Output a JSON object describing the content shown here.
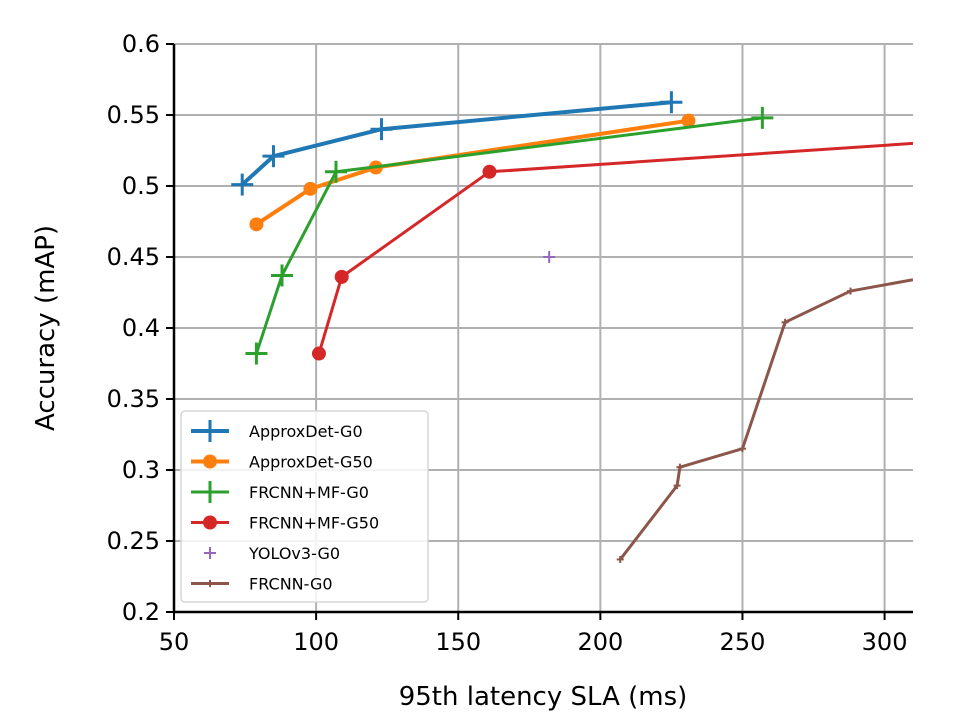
{
  "chart_data": {
    "type": "line",
    "title": "",
    "xlabel": "95th latency SLA (ms)",
    "ylabel": "Accuracy (mAP)",
    "xlim": [
      50,
      310
    ],
    "ylim": [
      0.2,
      0.6
    ],
    "grid": true,
    "legend_position": "lower-left",
    "x_ticks": [
      50,
      100,
      150,
      200,
      250,
      300
    ],
    "x_tick_labels": [
      "50",
      "100",
      "150",
      "200",
      "250",
      "300"
    ],
    "y_ticks": [
      0.2,
      0.25,
      0.3,
      0.35,
      0.4,
      0.45,
      0.5,
      0.55,
      0.6
    ],
    "y_tick_labels": [
      "0.2",
      "0.25",
      "0.3",
      "0.35",
      "0.4",
      "0.45",
      "0.5",
      "0.55",
      "0.6"
    ],
    "series": [
      {
        "name": "ApproxDet-G0",
        "color": "#1f77b4",
        "marker": "plus-large",
        "line": true,
        "linewidth": "thick",
        "points": [
          [
            74,
            0.501
          ],
          [
            85,
            0.521
          ],
          [
            123,
            0.54
          ],
          [
            225,
            0.559
          ]
        ]
      },
      {
        "name": "ApproxDet-G50",
        "color": "#ff7f0e",
        "marker": "dot",
        "line": true,
        "linewidth": "thick",
        "points": [
          [
            79,
            0.473
          ],
          [
            98,
            0.498
          ],
          [
            121,
            0.513
          ],
          [
            231,
            0.546
          ]
        ]
      },
      {
        "name": "FRCNN+MF-G0",
        "color": "#2ca02c",
        "marker": "plus-large",
        "line": true,
        "linewidth": "normal",
        "points": [
          [
            79,
            0.382
          ],
          [
            88,
            0.437
          ],
          [
            107,
            0.51
          ],
          [
            257,
            0.548
          ]
        ]
      },
      {
        "name": "FRCNN+MF-G50",
        "color": "#d62728",
        "marker": "dot",
        "line": true,
        "linewidth": "normal",
        "points": [
          [
            101,
            0.382
          ],
          [
            109,
            0.436
          ],
          [
            161,
            0.51
          ],
          [
            310,
            0.53
          ]
        ]
      },
      {
        "name": "YOLOv3-G0",
        "color": "#9467bd",
        "marker": "plus-small",
        "line": false,
        "linewidth": "none",
        "points": [
          [
            182,
            0.45
          ]
        ]
      },
      {
        "name": "FRCNN-G0",
        "color": "#8c564b",
        "marker": "tick",
        "line": true,
        "linewidth": "normal",
        "points": [
          [
            207,
            0.237
          ],
          [
            227,
            0.289
          ],
          [
            228,
            0.302
          ],
          [
            250,
            0.315
          ],
          [
            265,
            0.404
          ],
          [
            288,
            0.426
          ],
          [
            310,
            0.434
          ]
        ]
      }
    ]
  }
}
